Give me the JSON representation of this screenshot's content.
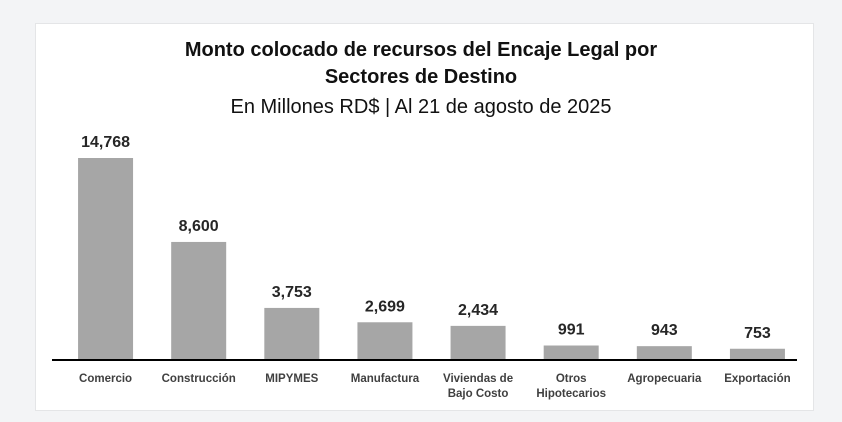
{
  "chart_data": {
    "type": "bar",
    "title": "Monto colocado de recursos del Encaje Legal por Sectores de Destino",
    "title_lines": [
      "Monto colocado de recursos del Encaje Legal por",
      "Sectores de Destino"
    ],
    "subtitle": "En Millones  RD$ | Al 21 de agosto de 2025",
    "xlabel": "",
    "ylabel": "",
    "ylim": [
      0,
      14768
    ],
    "grid": false,
    "legend": "none",
    "categories": [
      [
        "Comercio"
      ],
      [
        "Construcción"
      ],
      [
        "MIPYMES"
      ],
      [
        "Manufactura"
      ],
      [
        "Viviendas de",
        "Bajo Costo"
      ],
      [
        "Otros",
        "Hipotecarios"
      ],
      [
        "Agropecuaria"
      ],
      [
        "Exportación"
      ]
    ],
    "values": [
      14768,
      8600,
      3753,
      2699,
      2434,
      991,
      943,
      753
    ],
    "value_labels": [
      "14,768",
      "8,600",
      "3,753",
      "2,699",
      "2,434",
      "991",
      "943",
      "753"
    ],
    "colors": {
      "bar": "#a6a6a6",
      "axis": "#000000",
      "value_text": "#262626",
      "category_text": "#404040"
    }
  }
}
